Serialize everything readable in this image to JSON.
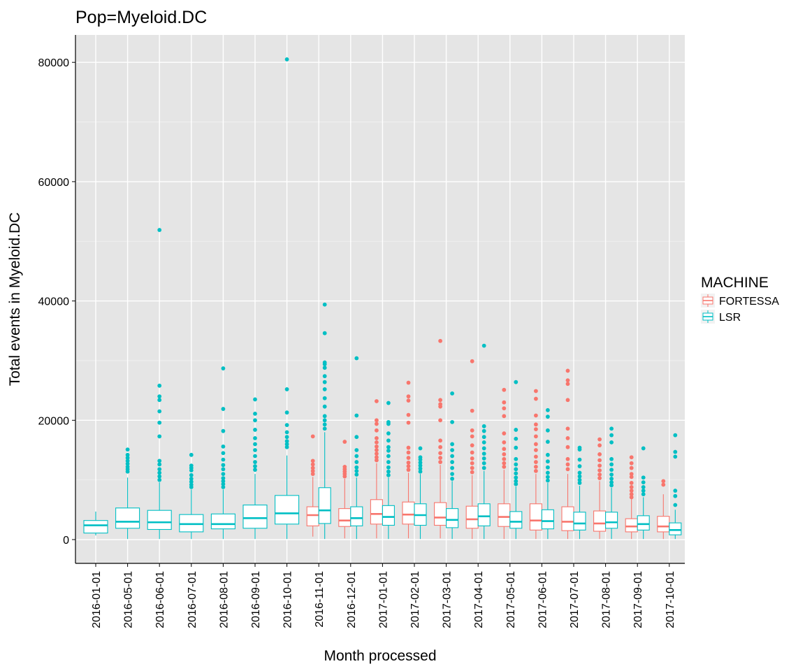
{
  "chart_data": {
    "type": "boxplot",
    "title": "Pop=Myeloid.DC",
    "xlabel": "Month processed",
    "ylabel": "Total events in Myeloid.DC",
    "ylim": [
      -4000,
      84500
    ],
    "yticks": [
      0,
      20000,
      40000,
      60000,
      80000
    ],
    "grid": true,
    "legend": {
      "title": "MACHINE",
      "position": "right",
      "entries": [
        {
          "name": "FORTESSA",
          "color": "#F8766D"
        },
        {
          "name": "LSR",
          "color": "#00BFC4"
        }
      ]
    },
    "categories": [
      "2016-01-01",
      "2016-05-01",
      "2016-06-01",
      "2016-07-01",
      "2016-08-01",
      "2016-09-01",
      "2016-10-01",
      "2016-11-01",
      "2016-12-01",
      "2017-01-01",
      "2017-02-01",
      "2017-03-01",
      "2017-04-01",
      "2017-05-01",
      "2017-06-01",
      "2017-07-01",
      "2017-08-01",
      "2017-09-01",
      "2017-10-01"
    ],
    "series": [
      {
        "name": "FORTESSA",
        "color": "#F8766D",
        "boxes": [
          {
            "category": "2016-11-01",
            "min": 500,
            "q1": 2300,
            "median": 4100,
            "q3": 5500,
            "max": 10500,
            "outliers": [
              11000,
              11500,
              12000,
              12600,
              13200,
              17300
            ]
          },
          {
            "category": "2016-12-01",
            "min": 200,
            "q1": 2200,
            "median": 3200,
            "q3": 5200,
            "max": 10200,
            "outliers": [
              10600,
              11000,
              11400,
              11800,
              12200,
              16400
            ]
          },
          {
            "category": "2017-01-01",
            "min": 200,
            "q1": 2600,
            "median": 4300,
            "q3": 6700,
            "max": 12800,
            "outliers": [
              13300,
              13800,
              14400,
              15000,
              15600,
              16300,
              17000,
              18300,
              19400,
              20000,
              23200
            ]
          },
          {
            "category": "2017-02-01",
            "min": 200,
            "q1": 2600,
            "median": 4200,
            "q3": 6300,
            "max": 11200,
            "outliers": [
              11700,
              12300,
              12900,
              13700,
              14600,
              15400,
              19600,
              20900,
              23300,
              24000,
              26300
            ]
          },
          {
            "category": "2017-03-01",
            "min": 200,
            "q1": 2400,
            "median": 3700,
            "q3": 6200,
            "max": 12500,
            "outliers": [
              13000,
              13700,
              14500,
              15500,
              16600,
              20000,
              22300,
              22700,
              23400,
              33300
            ]
          },
          {
            "category": "2017-04-01",
            "min": 100,
            "q1": 1900,
            "median": 3400,
            "q3": 5600,
            "max": 10800,
            "outliers": [
              11300,
              12000,
              12800,
              13600,
              14600,
              15800,
              17300,
              18300,
              21600,
              29900
            ]
          },
          {
            "category": "2017-05-01",
            "min": 100,
            "q1": 2200,
            "median": 3800,
            "q3": 6000,
            "max": 11700,
            "outliers": [
              12200,
              12800,
              13500,
              14300,
              15200,
              16300,
              17800,
              20700,
              22000,
              23000,
              25100
            ]
          },
          {
            "category": "2017-06-01",
            "min": 100,
            "q1": 1600,
            "median": 3200,
            "q3": 6000,
            "max": 11000,
            "outliers": [
              11500,
              12200,
              13000,
              13900,
              15000,
              16000,
              17300,
              18500,
              19300,
              20800,
              23600,
              24900
            ]
          },
          {
            "category": "2017-07-01",
            "min": 100,
            "q1": 1500,
            "median": 3000,
            "q3": 5500,
            "max": 11000,
            "outliers": [
              11800,
              12600,
              13500,
              15500,
              17000,
              18600,
              23400,
              26100,
              26700,
              28300
            ]
          },
          {
            "category": "2017-08-01",
            "min": 100,
            "q1": 1400,
            "median": 2700,
            "q3": 4800,
            "max": 9800,
            "outliers": [
              10300,
              10900,
              11600,
              12400,
              13300,
              14300,
              15800,
              16800
            ]
          },
          {
            "category": "2017-09-01",
            "min": 100,
            "q1": 1300,
            "median": 2200,
            "q3": 3500,
            "max": 6800,
            "outliers": [
              7100,
              7600,
              8200,
              8800,
              9500,
              10500,
              11000,
              12000,
              12800,
              13800
            ]
          },
          {
            "category": "2017-10-01",
            "min": 100,
            "q1": 1300,
            "median": 2200,
            "q3": 3900,
            "max": 7600,
            "outliers": [
              9200,
              9800
            ]
          }
        ]
      },
      {
        "name": "LSR",
        "color": "#00BFC4",
        "boxes": [
          {
            "category": "2016-01-01",
            "min": 700,
            "q1": 1100,
            "median": 2400,
            "q3": 3200,
            "max": 4700,
            "outliers": []
          },
          {
            "category": "2016-05-01",
            "min": 100,
            "q1": 1900,
            "median": 3000,
            "q3": 5300,
            "max": 10400,
            "outliers": [
              11400,
              11800,
              12200,
              12700,
              13200,
              13700,
              14200,
              15100
            ]
          },
          {
            "category": "2016-06-01",
            "min": 100,
            "q1": 1700,
            "median": 2900,
            "q3": 4900,
            "max": 9600,
            "outliers": [
              10000,
              10600,
              11200,
              11800,
              12600,
              13200,
              17300,
              19600,
              21500,
              23400,
              24000,
              25800,
              51900
            ]
          },
          {
            "category": "2016-07-01",
            "min": 100,
            "q1": 1300,
            "median": 2600,
            "q3": 4200,
            "max": 8400,
            "outliers": [
              8800,
              9200,
              9700,
              10200,
              10800,
              11600,
              12000,
              12400,
              14200
            ]
          },
          {
            "category": "2016-08-01",
            "min": 100,
            "q1": 1800,
            "median": 2600,
            "q3": 4300,
            "max": 8400,
            "outliers": [
              8800,
              9300,
              9800,
              10300,
              11000,
              11800,
              12500,
              13400,
              14500,
              15600,
              18200,
              21900,
              28700
            ]
          },
          {
            "category": "2016-09-01",
            "min": 100,
            "q1": 1900,
            "median": 3600,
            "q3": 5800,
            "max": 11000,
            "outliers": [
              11700,
              12300,
              13000,
              14000,
              15000,
              16000,
              17000,
              18400,
              20000,
              21100,
              23500
            ]
          },
          {
            "category": "2016-10-01",
            "min": 100,
            "q1": 2600,
            "median": 4400,
            "q3": 7400,
            "max": 14100,
            "outliers": [
              15500,
              16000,
              16500,
              17200,
              18000,
              19200,
              21300,
              25200,
              80500
            ]
          },
          {
            "category": "2016-11-01",
            "min": 100,
            "q1": 2700,
            "median": 4900,
            "q3": 8700,
            "max": 18000,
            "outliers": [
              18600,
              19300,
              20000,
              20700,
              22300,
              23700,
              25200,
              26400,
              27400,
              28800,
              29400,
              29700,
              34600,
              39400
            ]
          },
          {
            "category": "2016-12-01",
            "min": 100,
            "q1": 2300,
            "median": 3600,
            "q3": 5500,
            "max": 10400,
            "outliers": [
              10900,
              11500,
              12100,
              13000,
              14000,
              15000,
              17200,
              20800,
              30400
            ]
          },
          {
            "category": "2017-01-01",
            "min": 100,
            "q1": 2400,
            "median": 3800,
            "q3": 5700,
            "max": 10400,
            "outliers": [
              10800,
              11400,
              12100,
              13000,
              14000,
              14900,
              15500,
              16600,
              17800,
              19400,
              19700,
              22900
            ]
          },
          {
            "category": "2017-02-01",
            "min": 100,
            "q1": 2400,
            "median": 4100,
            "q3": 6000,
            "max": 11000,
            "outliers": [
              11400,
              11900,
              12400,
              12900,
              13400,
              13800,
              15300
            ]
          },
          {
            "category": "2017-03-01",
            "min": 100,
            "q1": 2000,
            "median": 3300,
            "q3": 5200,
            "max": 9800,
            "outliers": [
              10200,
              11000,
              12000,
              13000,
              14000,
              15000,
              16000,
              19700,
              24500
            ]
          },
          {
            "category": "2017-04-01",
            "min": 100,
            "q1": 2300,
            "median": 3900,
            "q3": 6000,
            "max": 11500,
            "outliers": [
              12000,
              12800,
              13600,
              14400,
              15300,
              16300,
              17200,
              18200,
              19000,
              32500
            ]
          },
          {
            "category": "2017-05-01",
            "min": 100,
            "q1": 1900,
            "median": 3000,
            "q3": 4700,
            "max": 8900,
            "outliers": [
              9300,
              9800,
              10400,
              11100,
              11800,
              12600,
              13500,
              15400,
              16900,
              18400,
              26400
            ]
          },
          {
            "category": "2017-06-01",
            "min": 100,
            "q1": 1800,
            "median": 3100,
            "q3": 5000,
            "max": 9500,
            "outliers": [
              9900,
              10500,
              11200,
              12100,
              13100,
              14200,
              16400,
              18300,
              20600,
              21700
            ]
          },
          {
            "category": "2017-07-01",
            "min": 100,
            "q1": 1600,
            "median": 2700,
            "q3": 4600,
            "max": 9000,
            "outliers": [
              9500,
              10000,
              10600,
              11200,
              12300,
              13400,
              15100,
              15400
            ]
          },
          {
            "category": "2017-08-01",
            "min": 100,
            "q1": 1900,
            "median": 2900,
            "q3": 4600,
            "max": 8700,
            "outliers": [
              9100,
              9600,
              10200,
              10900,
              11700,
              12600,
              13500,
              16300,
              17500,
              18600
            ]
          },
          {
            "category": "2017-09-01",
            "min": 100,
            "q1": 1600,
            "median": 2600,
            "q3": 4000,
            "max": 7100,
            "outliers": [
              7600,
              8200,
              8800,
              9600,
              10400,
              15300
            ]
          },
          {
            "category": "2017-10-01",
            "min": 100,
            "q1": 800,
            "median": 1600,
            "q3": 2800,
            "max": 5000,
            "outliers": [
              5800,
              7300,
              8200,
              13900,
              14700,
              17500
            ]
          }
        ]
      }
    ]
  }
}
